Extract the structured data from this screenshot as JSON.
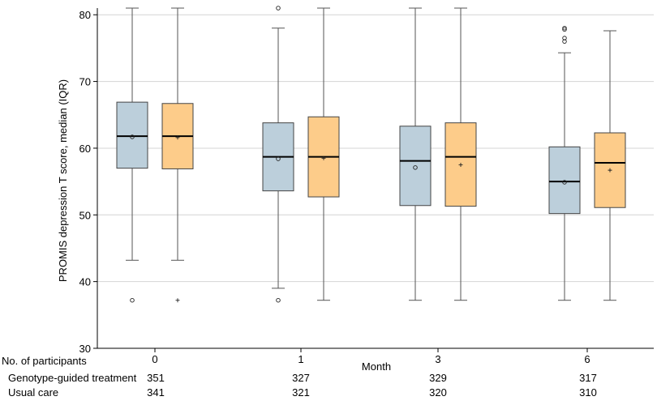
{
  "chart_data": {
    "type": "box",
    "title": "",
    "xlabel": "Month",
    "ylabel": "PROMIS depression T score, median (IQR)",
    "ylim": [
      30,
      81
    ],
    "yticks": [
      30,
      40,
      50,
      60,
      70,
      80
    ],
    "grid": "horizontal",
    "categories": [
      "0",
      "1",
      "3",
      "6"
    ],
    "series": [
      {
        "name": "Genotype-guided treatment",
        "color": "#bccfdb",
        "mean_marker": "circle",
        "boxes": [
          {
            "whisker_low": 43.2,
            "q1": 57.0,
            "median": 61.8,
            "q3": 66.9,
            "whisker_high": 81.0,
            "mean": 61.7,
            "outliers": [
              37.2
            ]
          },
          {
            "whisker_low": 39.0,
            "q1": 53.6,
            "median": 58.7,
            "q3": 63.8,
            "whisker_high": 78.0,
            "mean": 58.4,
            "outliers": [
              37.2,
              81.0
            ]
          },
          {
            "whisker_low": 37.2,
            "q1": 51.4,
            "median": 58.1,
            "q3": 63.3,
            "whisker_high": 81.0,
            "mean": 57.1,
            "outliers": []
          },
          {
            "whisker_low": 37.2,
            "q1": 50.2,
            "median": 55.0,
            "q3": 60.2,
            "whisker_high": 74.3,
            "mean": 54.9,
            "outliers": [
              76.0,
              76.5,
              77.8,
              78.0
            ]
          }
        ]
      },
      {
        "name": "Usual care",
        "color": "#fdcc8a",
        "mean_marker": "plus",
        "boxes": [
          {
            "whisker_low": 43.2,
            "q1": 56.9,
            "median": 61.8,
            "q3": 66.7,
            "whisker_high": 81.0,
            "mean": 61.6,
            "outliers": [
              37.2
            ]
          },
          {
            "whisker_low": 37.2,
            "q1": 52.7,
            "median": 58.7,
            "q3": 64.7,
            "whisker_high": 81.0,
            "mean": 58.5,
            "outliers": []
          },
          {
            "whisker_low": 37.2,
            "q1": 51.3,
            "median": 58.7,
            "q3": 63.8,
            "whisker_high": 81.0,
            "mean": 57.5,
            "outliers": []
          },
          {
            "whisker_low": 37.2,
            "q1": 51.1,
            "median": 57.8,
            "q3": 62.3,
            "whisker_high": 77.6,
            "mean": 56.7,
            "outliers": []
          }
        ]
      }
    ]
  },
  "participants": {
    "heading": "No. of participants",
    "rows": [
      {
        "label": "Genotype-guided treatment",
        "counts": [
          "351",
          "327",
          "329",
          "317"
        ]
      },
      {
        "label": "Usual care",
        "counts": [
          "341",
          "321",
          "320",
          "310"
        ]
      }
    ]
  }
}
